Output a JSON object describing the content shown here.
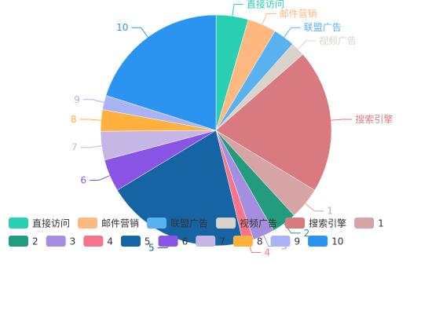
{
  "chart_data": {
    "type": "pie",
    "title": "",
    "legend_placement": "bottom-left, overlapping pie",
    "series": [
      {
        "slices": [
          {
            "name": "直接访问",
            "value": 4.5,
            "color": "#2ad0b2"
          },
          {
            "name": "邮件营销",
            "value": 4.0,
            "color": "#ffb980"
          },
          {
            "name": "联盟广告",
            "value": 3.0,
            "color": "#5ab1ef"
          },
          {
            "name": "视频广告",
            "value": 2.0,
            "color": "#d9d3cc"
          },
          {
            "name": "搜索引擎",
            "value": 20.0,
            "color": "#d87a80"
          },
          {
            "name": "1",
            "value": 4.5,
            "color": "#d6a4a4"
          },
          {
            "name": "2",
            "value": 3.5,
            "color": "#229b7f"
          },
          {
            "name": "3",
            "value": 3.0,
            "color": "#a58ee0"
          },
          {
            "name": "4",
            "value": 1.5,
            "color": "#f7758b"
          },
          {
            "name": "5",
            "value": 20.0,
            "color": "#1764a4"
          },
          {
            "name": "6",
            "value": 4.5,
            "color": "#8a55e4"
          },
          {
            "name": "7",
            "value": 4.0,
            "color": "#c6b6e6"
          },
          {
            "name": "8",
            "value": 3.0,
            "color": "#feb13f"
          },
          {
            "name": "9",
            "value": 2.0,
            "color": "#aab3f3"
          },
          {
            "name": "10",
            "value": 20.0,
            "color": "#2b93f0"
          }
        ]
      }
    ]
  }
}
